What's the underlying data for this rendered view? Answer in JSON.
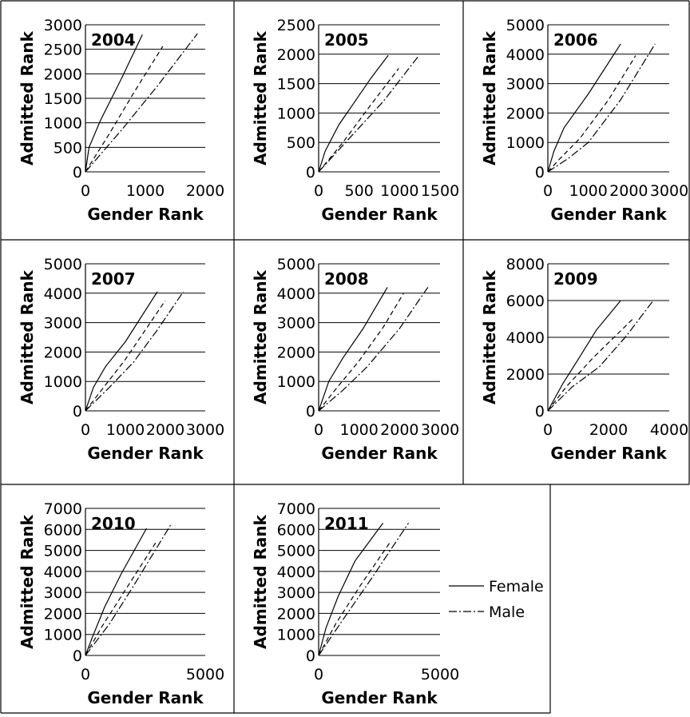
{
  "figure": {
    "legend": {
      "female_label": "Female",
      "male_label": "Male"
    }
  },
  "chart_data": [
    {
      "type": "line",
      "year_label": "2004",
      "xlabel": "Gender Rank",
      "ylabel": "Admitted Rank",
      "xlim": [
        0,
        2000
      ],
      "ylim": [
        0,
        3000
      ],
      "xticks": [
        0,
        1000,
        2000
      ],
      "yticks": [
        0,
        500,
        1000,
        1500,
        2000,
        2500,
        3000
      ],
      "series": [
        {
          "name": "Female",
          "style": "solid",
          "x": [
            0,
            60,
            250,
            600,
            950
          ],
          "y": [
            0,
            500,
            1050,
            1900,
            2800
          ]
        },
        {
          "name": "",
          "style": "dashed",
          "x": [
            0,
            400,
            800,
            1290
          ],
          "y": [
            0,
            780,
            1600,
            2560
          ]
        },
        {
          "name": "Male",
          "style": "dashdot",
          "x": [
            0,
            600,
            1200,
            1870
          ],
          "y": [
            0,
            850,
            1750,
            2820
          ]
        }
      ]
    },
    {
      "type": "line",
      "year_label": "2005",
      "xlabel": "Gender Rank",
      "ylabel": "Admitted Rank",
      "xlim": [
        0,
        1500
      ],
      "ylim": [
        0,
        2500
      ],
      "xticks": [
        0,
        500,
        1000,
        1500
      ],
      "yticks": [
        0,
        500,
        1000,
        1500,
        2000,
        2500
      ],
      "series": [
        {
          "name": "Female",
          "style": "solid",
          "x": [
            0,
            80,
            250,
            450,
            650,
            860
          ],
          "y": [
            0,
            350,
            800,
            1200,
            1600,
            1980
          ]
        },
        {
          "name": "",
          "style": "dashed",
          "x": [
            0,
            300,
            650,
            990
          ],
          "y": [
            0,
            500,
            1150,
            1760
          ]
        },
        {
          "name": "Male",
          "style": "dashdot",
          "x": [
            0,
            400,
            800,
            1230
          ],
          "y": [
            0,
            600,
            1200,
            1960
          ]
        }
      ]
    },
    {
      "type": "line",
      "year_label": "2006",
      "xlabel": "Gender Rank",
      "ylabel": "Admitted Rank",
      "xlim": [
        0,
        3000
      ],
      "ylim": [
        0,
        5000
      ],
      "xticks": [
        0,
        1000,
        2000,
        3000
      ],
      "yticks": [
        0,
        1000,
        2000,
        3000,
        4000,
        5000
      ],
      "series": [
        {
          "name": "Female",
          "style": "solid",
          "x": [
            0,
            150,
            400,
            1000,
            1800
          ],
          "y": [
            0,
            700,
            1500,
            2650,
            4350
          ]
        },
        {
          "name": "",
          "style": "dashed",
          "x": [
            0,
            300,
            800,
            1500,
            2170
          ],
          "y": [
            0,
            450,
            1150,
            2450,
            3950
          ]
        },
        {
          "name": "Male",
          "style": "dashdot",
          "x": [
            0,
            500,
            1000,
            1800,
            2650
          ],
          "y": [
            0,
            450,
            1000,
            2450,
            4350
          ]
        }
      ]
    },
    {
      "type": "line",
      "year_label": "2007",
      "xlabel": "Gender Rank",
      "ylabel": "Admitted Rank",
      "xlim": [
        0,
        3000
      ],
      "ylim": [
        0,
        5000
      ],
      "xticks": [
        0,
        1000,
        2000,
        3000
      ],
      "yticks": [
        0,
        1000,
        2000,
        3000,
        4000,
        5000
      ],
      "series": [
        {
          "name": "Female",
          "style": "solid",
          "x": [
            0,
            200,
            500,
            1000,
            1800
          ],
          "y": [
            0,
            800,
            1500,
            2350,
            4050
          ]
        },
        {
          "name": "",
          "style": "dashed",
          "x": [
            0,
            400,
            1000,
            2000
          ],
          "y": [
            0,
            700,
            1750,
            3750
          ]
        },
        {
          "name": "Male",
          "style": "dashdot",
          "x": [
            0,
            600,
            1200,
            1800,
            2450
          ],
          "y": [
            0,
            800,
            1650,
            2750,
            4050
          ]
        }
      ]
    },
    {
      "type": "line",
      "year_label": "2008",
      "xlabel": "Gender Rank",
      "ylabel": "Admitted Rank",
      "xlim": [
        0,
        3000
      ],
      "ylim": [
        0,
        5000
      ],
      "xticks": [
        0,
        1000,
        2000,
        3000
      ],
      "yticks": [
        0,
        1000,
        2000,
        3000,
        4000,
        5000
      ],
      "series": [
        {
          "name": "Female",
          "style": "solid",
          "x": [
            0,
            250,
            600,
            1100,
            1700
          ],
          "y": [
            0,
            1000,
            1800,
            2800,
            4200
          ]
        },
        {
          "name": "",
          "style": "dashed",
          "x": [
            0,
            400,
            1000,
            1600,
            2100
          ],
          "y": [
            0,
            700,
            1700,
            2850,
            4000
          ]
        },
        {
          "name": "Male",
          "style": "dashdot",
          "x": [
            0,
            600,
            1200,
            2000,
            2700
          ],
          "y": [
            0,
            700,
            1500,
            2800,
            4200
          ]
        }
      ]
    },
    {
      "type": "line",
      "year_label": "2009",
      "xlabel": "Gender Rank",
      "ylabel": "Admitted Rank",
      "xlim": [
        0,
        4000
      ],
      "ylim": [
        0,
        8000
      ],
      "xticks": [
        0,
        2000,
        4000
      ],
      "yticks": [
        0,
        2000,
        4000,
        6000,
        8000
      ],
      "series": [
        {
          "name": "Female",
          "style": "solid",
          "x": [
            0,
            500,
            1000,
            1600,
            2400
          ],
          "y": [
            0,
            1500,
            2800,
            4400,
            6000
          ]
        },
        {
          "name": "",
          "style": "dashed",
          "x": [
            0,
            600,
            1500,
            2800
          ],
          "y": [
            0,
            1300,
            2900,
            5000
          ]
        },
        {
          "name": "Male",
          "style": "dashdot",
          "x": [
            0,
            800,
            1700,
            2600,
            3450
          ],
          "y": [
            0,
            1300,
            2400,
            4100,
            5950
          ]
        }
      ]
    },
    {
      "type": "line",
      "year_label": "2010",
      "xlabel": "Gender Rank",
      "ylabel": "Admitted Rank",
      "xlim": [
        0,
        5000
      ],
      "ylim": [
        0,
        7000
      ],
      "xticks": [
        0,
        5000
      ],
      "yticks": [
        0,
        1000,
        2000,
        3000,
        4000,
        5000,
        6000,
        7000
      ],
      "series": [
        {
          "name": "Female",
          "style": "solid",
          "x": [
            0,
            300,
            800,
            1500,
            2550
          ],
          "y": [
            0,
            900,
            2300,
            3900,
            6050
          ]
        },
        {
          "name": "",
          "style": "dashed",
          "x": [
            0,
            700,
            1600,
            2950
          ],
          "y": [
            0,
            1400,
            3000,
            5400
          ]
        },
        {
          "name": "Male",
          "style": "dashdot",
          "x": [
            0,
            1000,
            2000,
            3550
          ],
          "y": [
            0,
            1500,
            3300,
            6200
          ]
        }
      ]
    },
    {
      "type": "line",
      "year_label": "2011",
      "xlabel": "Gender Rank",
      "ylabel": "Admitted Rank",
      "xlim": [
        0,
        5000
      ],
      "ylim": [
        0,
        7000
      ],
      "xticks": [
        0,
        5000
      ],
      "yticks": [
        0,
        1000,
        2000,
        3000,
        4000,
        5000,
        6000,
        7000
      ],
      "series": [
        {
          "name": "Female",
          "style": "solid",
          "x": [
            0,
            300,
            800,
            1500,
            2650
          ],
          "y": [
            0,
            1300,
            2800,
            4500,
            6300
          ]
        },
        {
          "name": "",
          "style": "dashed",
          "x": [
            0,
            700,
            1700,
            2950
          ],
          "y": [
            0,
            1500,
            3300,
            5400
          ]
        },
        {
          "name": "Male",
          "style": "dashdot",
          "x": [
            0,
            1000,
            2200,
            3700
          ],
          "y": [
            0,
            1700,
            3700,
            6300
          ]
        }
      ]
    }
  ]
}
